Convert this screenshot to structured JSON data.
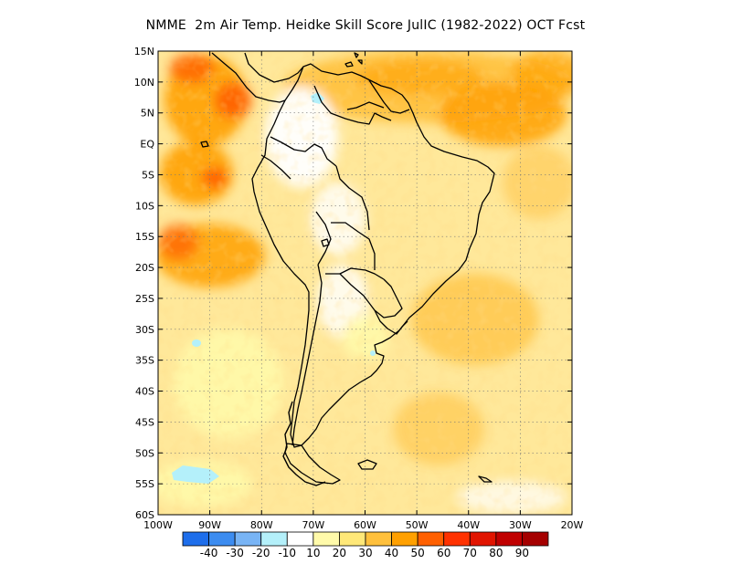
{
  "title": "NMME  2m Air Temp. Heidke Skill Score JulIC (1982-2022) OCT Fcst",
  "lat_labels": [
    "15N",
    "10N",
    "5N",
    "EQ",
    "5S",
    "10S",
    "15S",
    "20S",
    "25S",
    "30S",
    "35S",
    "40S",
    "45S",
    "50S",
    "55S",
    "60S"
  ],
  "lon_labels": [
    "100W",
    "90W",
    "80W",
    "70W",
    "60W",
    "50W",
    "40W",
    "30W",
    "20W"
  ],
  "colorbar": {
    "labels": [
      "-40",
      "-30",
      "-20",
      "-10",
      "10",
      "20",
      "30",
      "40",
      "50",
      "60",
      "70",
      "80",
      "90"
    ],
    "colors": [
      "#1e6eeb",
      "#3c8cf0",
      "#78b4f5",
      "#b4f0fa",
      "#ffffff",
      "#fffaaa",
      "#ffe878",
      "#ffc03c",
      "#ffa000",
      "#ff6000",
      "#ff3200",
      "#e11400",
      "#c00000",
      "#a50000"
    ]
  },
  "chart_data": {
    "type": "heatmap",
    "variable": "2m Air Temp. Heidke Skill Score",
    "region": "South America",
    "lon_range": [
      -100,
      -20
    ],
    "lat_range": [
      -60,
      15
    ],
    "color_levels": [
      -40,
      -30,
      -20,
      -10,
      10,
      20,
      30,
      40,
      50,
      60,
      70,
      80,
      90
    ]
  }
}
